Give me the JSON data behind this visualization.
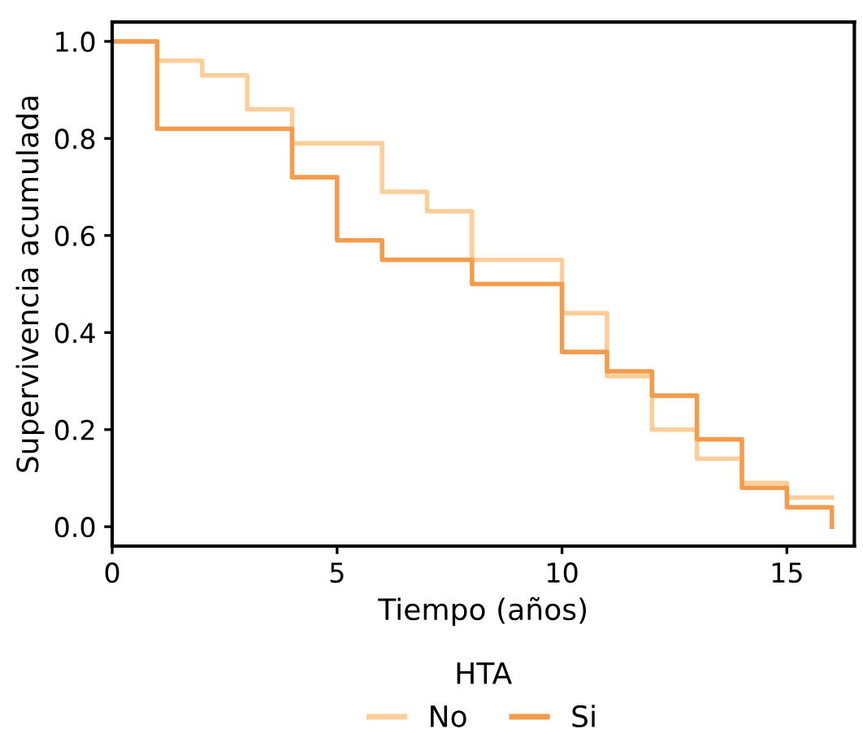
{
  "chart_data": {
    "type": "step",
    "xlabel": "Tiempo (años)",
    "ylabel": "Supervivencia acumulada",
    "legend_title": "HTA",
    "legend": "bottom",
    "grid": false,
    "series": [
      {
        "name": "No",
        "color": "#fdcd9a",
        "x": [
          0,
          1,
          2,
          3,
          4,
          6,
          7,
          8,
          10,
          11,
          12,
          13,
          14,
          15,
          16
        ],
        "values": [
          1.0,
          0.96,
          0.93,
          0.86,
          0.79,
          0.69,
          0.65,
          0.55,
          0.44,
          0.31,
          0.2,
          0.14,
          0.09,
          0.06,
          0.06
        ]
      },
      {
        "name": "Si",
        "color": "#f59c4c",
        "x": [
          0,
          1,
          4,
          5,
          6,
          8,
          10,
          11,
          12,
          13,
          14,
          15,
          16
        ],
        "values": [
          1.0,
          0.82,
          0.72,
          0.59,
          0.55,
          0.5,
          0.36,
          0.32,
          0.27,
          0.18,
          0.08,
          0.04,
          0.0
        ]
      }
    ],
    "xlim": [
      0,
      16.5
    ],
    "ylim": [
      -0.04,
      1.04
    ],
    "xticks": [
      0,
      5,
      10,
      15
    ],
    "yticks": [
      {
        "value": 0,
        "label": "0.0"
      },
      {
        "value": 0.2,
        "label": "0.2"
      },
      {
        "value": 0.4,
        "label": "0.4"
      },
      {
        "value": 0.6,
        "label": "0.6"
      },
      {
        "value": 0.8,
        "label": "0.8"
      },
      {
        "value": 1,
        "label": "1.0"
      }
    ]
  }
}
